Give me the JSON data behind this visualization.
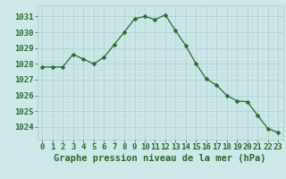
{
  "hours": [
    0,
    1,
    2,
    3,
    4,
    5,
    6,
    7,
    8,
    9,
    10,
    11,
    12,
    13,
    14,
    15,
    16,
    17,
    18,
    19,
    20,
    21,
    22,
    23
  ],
  "pressure": [
    1027.8,
    1027.8,
    1027.8,
    1028.6,
    1028.3,
    1028.0,
    1028.4,
    1029.2,
    1030.0,
    1030.85,
    1031.0,
    1030.8,
    1031.1,
    1030.1,
    1029.15,
    1028.0,
    1027.05,
    1026.65,
    1026.0,
    1025.65,
    1025.6,
    1024.75,
    1023.9,
    1023.65
  ],
  "line_color": "#2d6a2d",
  "marker": "D",
  "marker_size": 2.5,
  "bg_color": "#cce8e8",
  "grid_major_color": "#aacccc",
  "grid_minor_color": "#bbdddd",
  "xlabel": "Graphe pression niveau de la mer (hPa)",
  "xlabel_fontsize": 7.5,
  "ylabel_ticks": [
    1024,
    1025,
    1026,
    1027,
    1028,
    1029,
    1030,
    1031
  ],
  "ylim": [
    1023.2,
    1031.7
  ],
  "xlim": [
    -0.5,
    23.5
  ],
  "tick_fontsize": 6.5,
  "tick_color": "#2d6a2d",
  "axis_label_color": "#2d6a2d"
}
